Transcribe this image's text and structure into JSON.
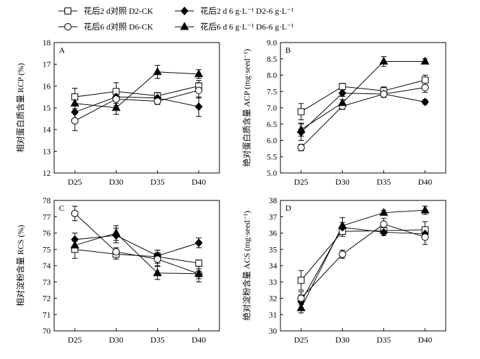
{
  "legend": [
    {
      "marker": "square-open",
      "label": "花后2 d对照 D2-CK"
    },
    {
      "marker": "diamond-filled",
      "label": "花后2 d 6 g·L⁻¹ D2-6 g·L⁻¹"
    },
    {
      "marker": "circle-open",
      "label": "花后6 d对照 D6-CK"
    },
    {
      "marker": "triangle-filled",
      "label": "花后6 d 6 g·L⁻¹ D6-6 g·L⁻¹"
    }
  ],
  "colors": {
    "ink": "#000000",
    "open_fill": "#ffffff"
  },
  "chart_data": [
    {
      "panel": "A",
      "type": "line",
      "categories": [
        "D25",
        "D30",
        "D35",
        "D40"
      ],
      "ylabel": "相对蛋白质含量 RCP (%)",
      "ylim": [
        12,
        18
      ],
      "yticks": [
        "12",
        "13",
        "14",
        "15",
        "16",
        "17",
        "18"
      ],
      "series": [
        {
          "name": "D2-CK",
          "marker": "square-open",
          "values": [
            15.5,
            15.75,
            15.55,
            16.0
          ],
          "errors": [
            0.4,
            0.4,
            0.15,
            0.25
          ]
        },
        {
          "name": "D2-6 g·L⁻¹",
          "marker": "diamond-filled",
          "values": [
            14.8,
            15.5,
            15.45,
            15.05
          ],
          "errors": [
            0.3,
            0.3,
            0.25,
            0.45
          ]
        },
        {
          "name": "D6-CK",
          "marker": "circle-open",
          "values": [
            14.4,
            15.4,
            15.3,
            15.8
          ],
          "errors": [
            0.45,
            0.3,
            0.15,
            0.35
          ]
        },
        {
          "name": "D6-6 g·L⁻¹",
          "marker": "triangle-filled",
          "values": [
            15.2,
            15.0,
            16.65,
            16.55
          ],
          "errors": [
            0.25,
            0.3,
            0.3,
            0.2
          ]
        }
      ]
    },
    {
      "panel": "B",
      "type": "line",
      "categories": [
        "D25",
        "D30",
        "D35",
        "D40"
      ],
      "ylabel": "绝对蛋白质含量 ACP (mg·seed⁻¹)",
      "ylim": [
        5.0,
        9.0
      ],
      "yticks": [
        "5.0",
        "5.5",
        "6.0",
        "6.5",
        "7.0",
        "7.5",
        "8.0",
        "8.5",
        "9.0"
      ],
      "series": [
        {
          "name": "D2-CK",
          "marker": "square-open",
          "values": [
            6.88,
            7.65,
            7.52,
            7.85
          ],
          "errors": [
            0.25,
            0.1,
            0.12,
            0.15
          ]
        },
        {
          "name": "D2-6 g·L⁻¹",
          "marker": "diamond-filled",
          "values": [
            6.25,
            7.45,
            7.42,
            7.18
          ],
          "errors": [
            0.25,
            0.1,
            0.1,
            0.07
          ]
        },
        {
          "name": "D6-CK",
          "marker": "circle-open",
          "values": [
            5.78,
            7.05,
            7.42,
            7.62
          ],
          "errors": [
            0.1,
            0.1,
            0.1,
            0.15
          ]
        },
        {
          "name": "D6-6 g·L⁻¹",
          "marker": "triangle-filled",
          "values": [
            6.33,
            7.15,
            8.42,
            8.42
          ],
          "errors": [
            0.2,
            0.1,
            0.15,
            0.08
          ]
        }
      ]
    },
    {
      "panel": "C",
      "type": "line",
      "categories": [
        "D25",
        "D30",
        "D35",
        "D40"
      ],
      "ylabel": "相对淀粉含量 RCS (%)",
      "ylim": [
        70,
        78
      ],
      "yticks": [
        "70",
        "71",
        "72",
        "73",
        "74",
        "75",
        "76",
        "77",
        "78"
      ],
      "series": [
        {
          "name": "D2-CK",
          "marker": "square-open",
          "values": [
            75.0,
            74.7,
            74.55,
            74.15
          ],
          "errors": [
            0.55,
            0.3,
            0.4,
            0.2
          ]
        },
        {
          "name": "D2-6 g·L⁻¹",
          "marker": "diamond-filled",
          "values": [
            75.6,
            75.85,
            74.6,
            75.4
          ],
          "errors": [
            0.4,
            0.45,
            0.35,
            0.3
          ]
        },
        {
          "name": "D6-CK",
          "marker": "circle-open",
          "values": [
            77.2,
            74.85,
            74.4,
            73.5
          ],
          "errors": [
            0.45,
            0.25,
            0.4,
            0.3
          ]
        },
        {
          "name": "D6-6 g·L⁻¹",
          "marker": "triangle-filled",
          "values": [
            75.25,
            76.0,
            73.55,
            73.5
          ],
          "errors": [
            0.4,
            0.45,
            0.4,
            0.5
          ]
        }
      ]
    },
    {
      "panel": "D",
      "type": "line",
      "categories": [
        "D25",
        "D30",
        "D35",
        "D40"
      ],
      "ylabel": "绝对淀粉含量 ACS (mg·seed⁻¹)",
      "ylim": [
        30,
        38
      ],
      "yticks": [
        "30",
        "31",
        "32",
        "33",
        "34",
        "35",
        "36",
        "37",
        "38"
      ],
      "series": [
        {
          "name": "D2-CK",
          "marker": "square-open",
          "values": [
            33.1,
            36.1,
            36.15,
            36.2
          ],
          "errors": [
            0.6,
            0.3,
            0.3,
            0.5
          ]
        },
        {
          "name": "D2-6 g·L⁻¹",
          "marker": "diamond-filled",
          "values": [
            31.8,
            36.35,
            36.05,
            35.95
          ],
          "errors": [
            0.4,
            0.3,
            0.2,
            0.3
          ]
        },
        {
          "name": "D6-CK",
          "marker": "circle-open",
          "values": [
            32.0,
            34.7,
            36.55,
            35.75
          ],
          "errors": [
            0.4,
            0.25,
            0.35,
            0.45
          ]
        },
        {
          "name": "D6-6 g·L⁻¹",
          "marker": "triangle-filled",
          "values": [
            31.4,
            36.45,
            37.25,
            37.4
          ],
          "errors": [
            0.3,
            0.5,
            0.15,
            0.25
          ]
        }
      ]
    }
  ]
}
